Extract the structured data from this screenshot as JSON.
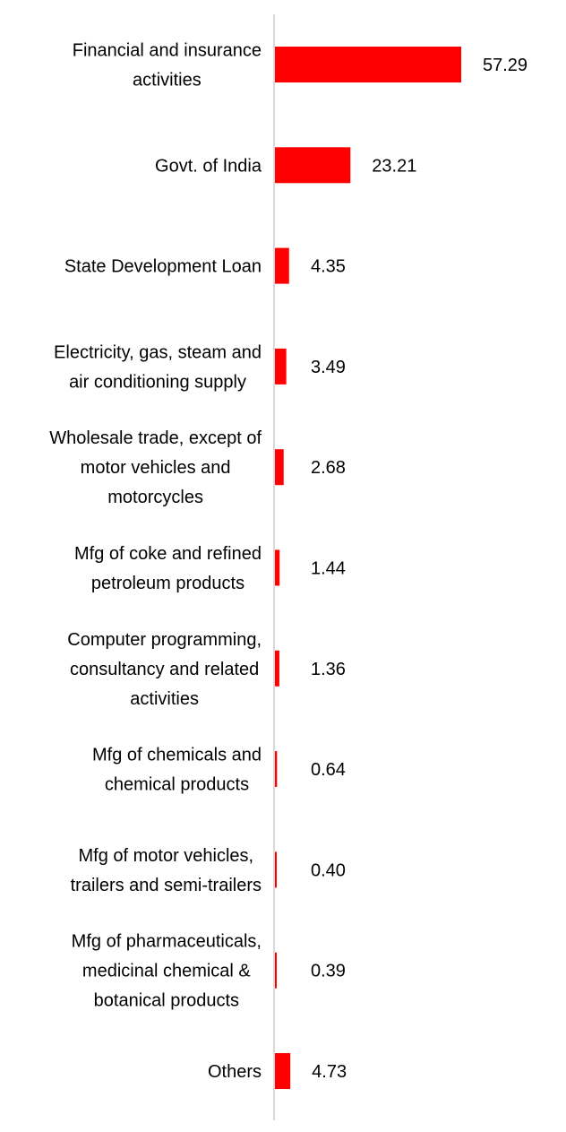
{
  "chart_data": {
    "type": "bar",
    "orientation": "horizontal",
    "title": "",
    "xlabel": "",
    "ylabel": "",
    "categories": [
      [
        "Financial and insurance",
        "activities"
      ],
      [
        "Govt. of India"
      ],
      [
        "State Development Loan"
      ],
      [
        "Electricity, gas, steam and",
        "air conditioning supply"
      ],
      [
        "Wholesale trade, except of",
        "motor vehicles and",
        "motorcycles"
      ],
      [
        "Mfg of coke and refined",
        "petroleum products"
      ],
      [
        "Computer programming,",
        "consultancy and related",
        "activities"
      ],
      [
        "Mfg of chemicals and",
        "chemical products"
      ],
      [
        "Mfg of motor vehicles,",
        "trailers and semi-trailers"
      ],
      [
        "Mfg of pharmaceuticals,",
        "medicinal chemical &",
        "botanical products"
      ],
      [
        "Others"
      ]
    ],
    "values": [
      57.29,
      23.21,
      4.35,
      3.49,
      2.68,
      1.44,
      1.36,
      0.64,
      0.4,
      0.39,
      4.73
    ],
    "value_labels": [
      "57.29",
      "23.21",
      "4.35",
      "3.49",
      "2.68",
      "1.44",
      "1.36",
      "0.64",
      "0.40",
      "0.39",
      "4.73"
    ],
    "xlim": [
      0,
      57.29
    ],
    "grid": false,
    "legend": "none",
    "bar_color": "#ff0000",
    "axis_color": "#d9d9d9"
  }
}
